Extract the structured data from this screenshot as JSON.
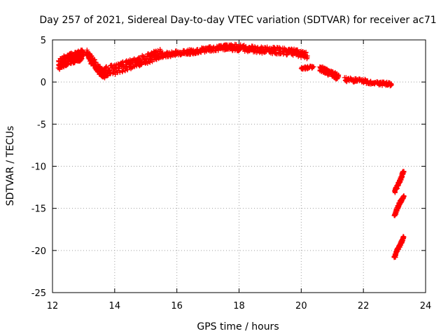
{
  "chart_data": {
    "type": "scatter",
    "title": "Day 257 of 2021, Sidereal Day-to-day VTEC variation (SDTVAR) for receiver ac71",
    "xlabel": "GPS time / hours",
    "ylabel": "SDTVAR / TECUs",
    "xlim": [
      12,
      24
    ],
    "ylim": [
      -25,
      5
    ],
    "xticks": [
      12,
      14,
      16,
      18,
      20,
      22,
      24
    ],
    "yticks": [
      -25,
      -20,
      -15,
      -10,
      -5,
      0,
      5
    ],
    "grid": true,
    "marker": "+",
    "marker_color": "#ff0000",
    "series": [
      {
        "name": "SDTVAR",
        "segments": [
          {
            "x": [
              12.2,
              12.4,
              12.6,
              12.8,
              13.0
            ],
            "y": [
              2.0,
              2.5,
              2.8,
              3.0,
              3.3
            ],
            "spread": 1.3
          },
          {
            "x": [
              13.1,
              13.3,
              13.5,
              13.7
            ],
            "y": [
              3.5,
              2.4,
              1.4,
              0.8
            ],
            "spread": 1.0
          },
          {
            "x": [
              13.6,
              14.0,
              14.4,
              14.8,
              15.2,
              15.5
            ],
            "y": [
              1.2,
              1.5,
              2.0,
              2.5,
              3.0,
              3.4
            ],
            "spread": 1.2
          },
          {
            "x": [
              15.5,
              16.0,
              16.5,
              17.0,
              17.5,
              17.8
            ],
            "y": [
              3.2,
              3.4,
              3.6,
              3.9,
              4.1,
              4.2
            ],
            "spread": 0.6
          },
          {
            "x": [
              17.8,
              18.3,
              18.8,
              19.3,
              19.8,
              20.2
            ],
            "y": [
              4.1,
              4.0,
              3.8,
              3.7,
              3.5,
              3.1
            ],
            "spread": 0.8
          },
          {
            "x": [
              20.0,
              20.4
            ],
            "y": [
              1.6,
              1.8
            ],
            "spread": 0.3
          },
          {
            "x": [
              20.6,
              20.9,
              21.2
            ],
            "y": [
              1.6,
              1.1,
              0.6
            ],
            "spread": 0.7
          },
          {
            "x": [
              21.4,
              21.8,
              22.2,
              22.6,
              22.9
            ],
            "y": [
              0.3,
              0.2,
              0.0,
              -0.2,
              -0.3
            ],
            "spread": 0.5
          },
          {
            "x": [
              23.0,
              23.1,
              23.2,
              23.3
            ],
            "y": [
              -13.0,
              -12.3,
              -11.5,
              -10.6
            ],
            "spread": 0.3
          },
          {
            "x": [
              23.0,
              23.1,
              23.2,
              23.3
            ],
            "y": [
              -15.8,
              -14.9,
              -14.2,
              -13.5
            ],
            "spread": 0.3
          },
          {
            "x": [
              23.0,
              23.1,
              23.2,
              23.3
            ],
            "y": [
              -20.8,
              -19.9,
              -19.2,
              -18.4
            ],
            "spread": 0.3
          }
        ]
      }
    ]
  }
}
